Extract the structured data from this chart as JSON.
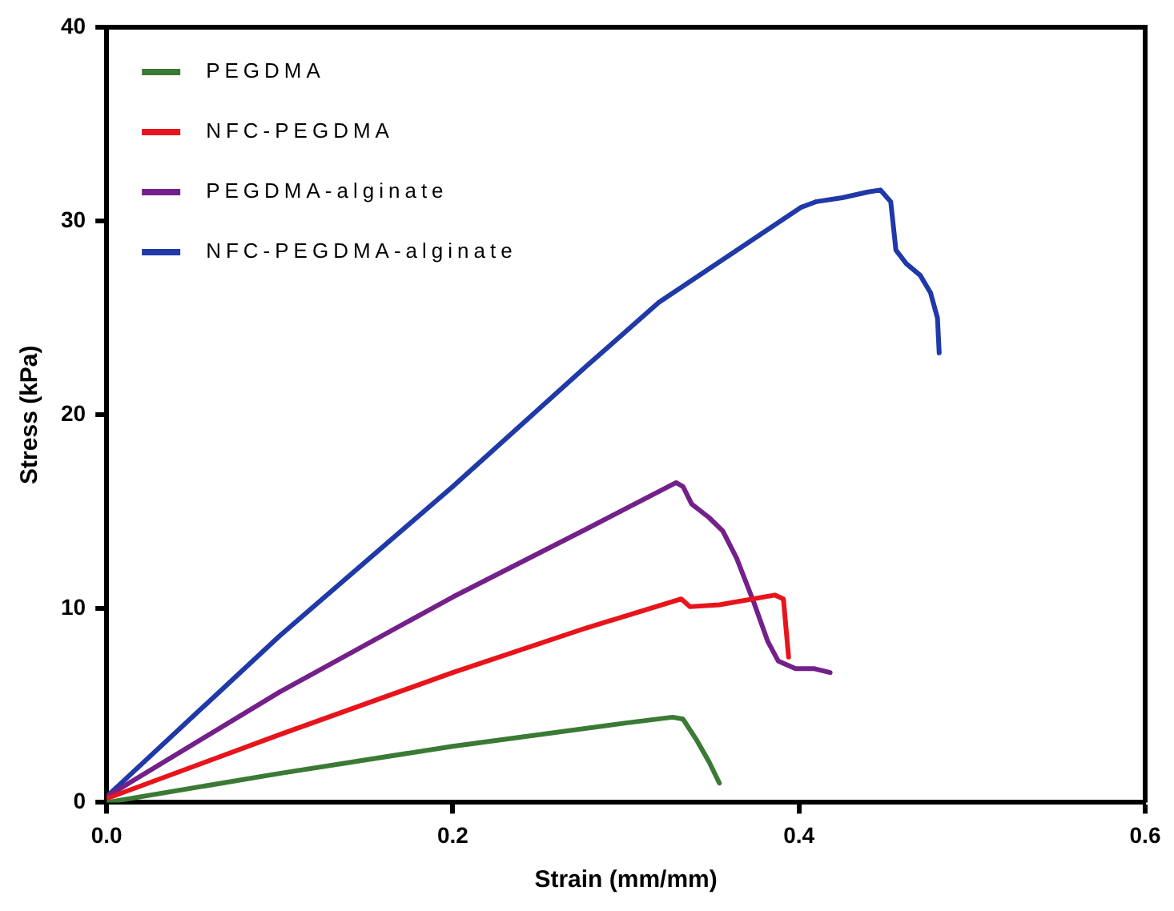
{
  "chart_data": {
    "type": "line",
    "xlabel": "Strain (mm/mm)",
    "ylabel": "Stress (kPa)",
    "xlim": [
      0,
      0.6
    ],
    "xticks": [
      {
        "value": 0,
        "label": "0.0"
      },
      {
        "value": 0.2,
        "label": "0.2"
      },
      {
        "value": 0.4,
        "label": "0.4"
      },
      {
        "value": 0.6,
        "label": "0.6"
      }
    ],
    "ylim": [
      0,
      40
    ],
    "yticks": [
      0,
      10,
      20,
      30,
      40
    ],
    "grid": false,
    "legend": "top left",
    "marker": "none",
    "line_style": "solid",
    "series": [
      {
        "name": "PEGDMA",
        "color": "#3a7a35",
        "x": [
          0,
          0.1,
          0.2,
          0.3,
          0.327,
          0.333,
          0.341,
          0.348,
          0.354
        ],
        "values": [
          0,
          1.5,
          2.9,
          4.1,
          4.4,
          4.3,
          3.2,
          2.1,
          1.0
        ]
      },
      {
        "name": "NFC-PEGDMA",
        "color": "#e8141b",
        "x": [
          0,
          0.1,
          0.2,
          0.277,
          0.332,
          0.337,
          0.354,
          0.386,
          0.391,
          0.394
        ],
        "values": [
          0.2,
          3.5,
          6.7,
          9.0,
          10.5,
          10.1,
          10.2,
          10.7,
          10.5,
          7.5
        ]
      },
      {
        "name": "PEGDMA-alginate",
        "color": "#74208a",
        "x": [
          0,
          0.1,
          0.2,
          0.277,
          0.329,
          0.333,
          0.338,
          0.348,
          0.356,
          0.364,
          0.374,
          0.382,
          0.388,
          0.398,
          0.409,
          0.418
        ],
        "values": [
          0.3,
          5.7,
          10.6,
          14.1,
          16.5,
          16.3,
          15.4,
          14.7,
          14,
          12.6,
          10.3,
          8.3,
          7.3,
          6.9,
          6.9,
          6.7
        ]
      },
      {
        "name": "NFC-PEGDMA-alginate",
        "color": "#2039a8",
        "x": [
          0,
          0.1,
          0.2,
          0.277,
          0.319,
          0.401,
          0.41,
          0.425,
          0.44,
          0.447,
          0.453,
          0.456,
          0.462,
          0.47,
          0.476,
          0.48,
          0.481
        ],
        "values": [
          0.3,
          8.6,
          16.3,
          22.5,
          25.8,
          30.7,
          31,
          31.2,
          31.5,
          31.6,
          31,
          28.5,
          27.8,
          27.2,
          26.3,
          25,
          23.2
        ]
      }
    ]
  }
}
